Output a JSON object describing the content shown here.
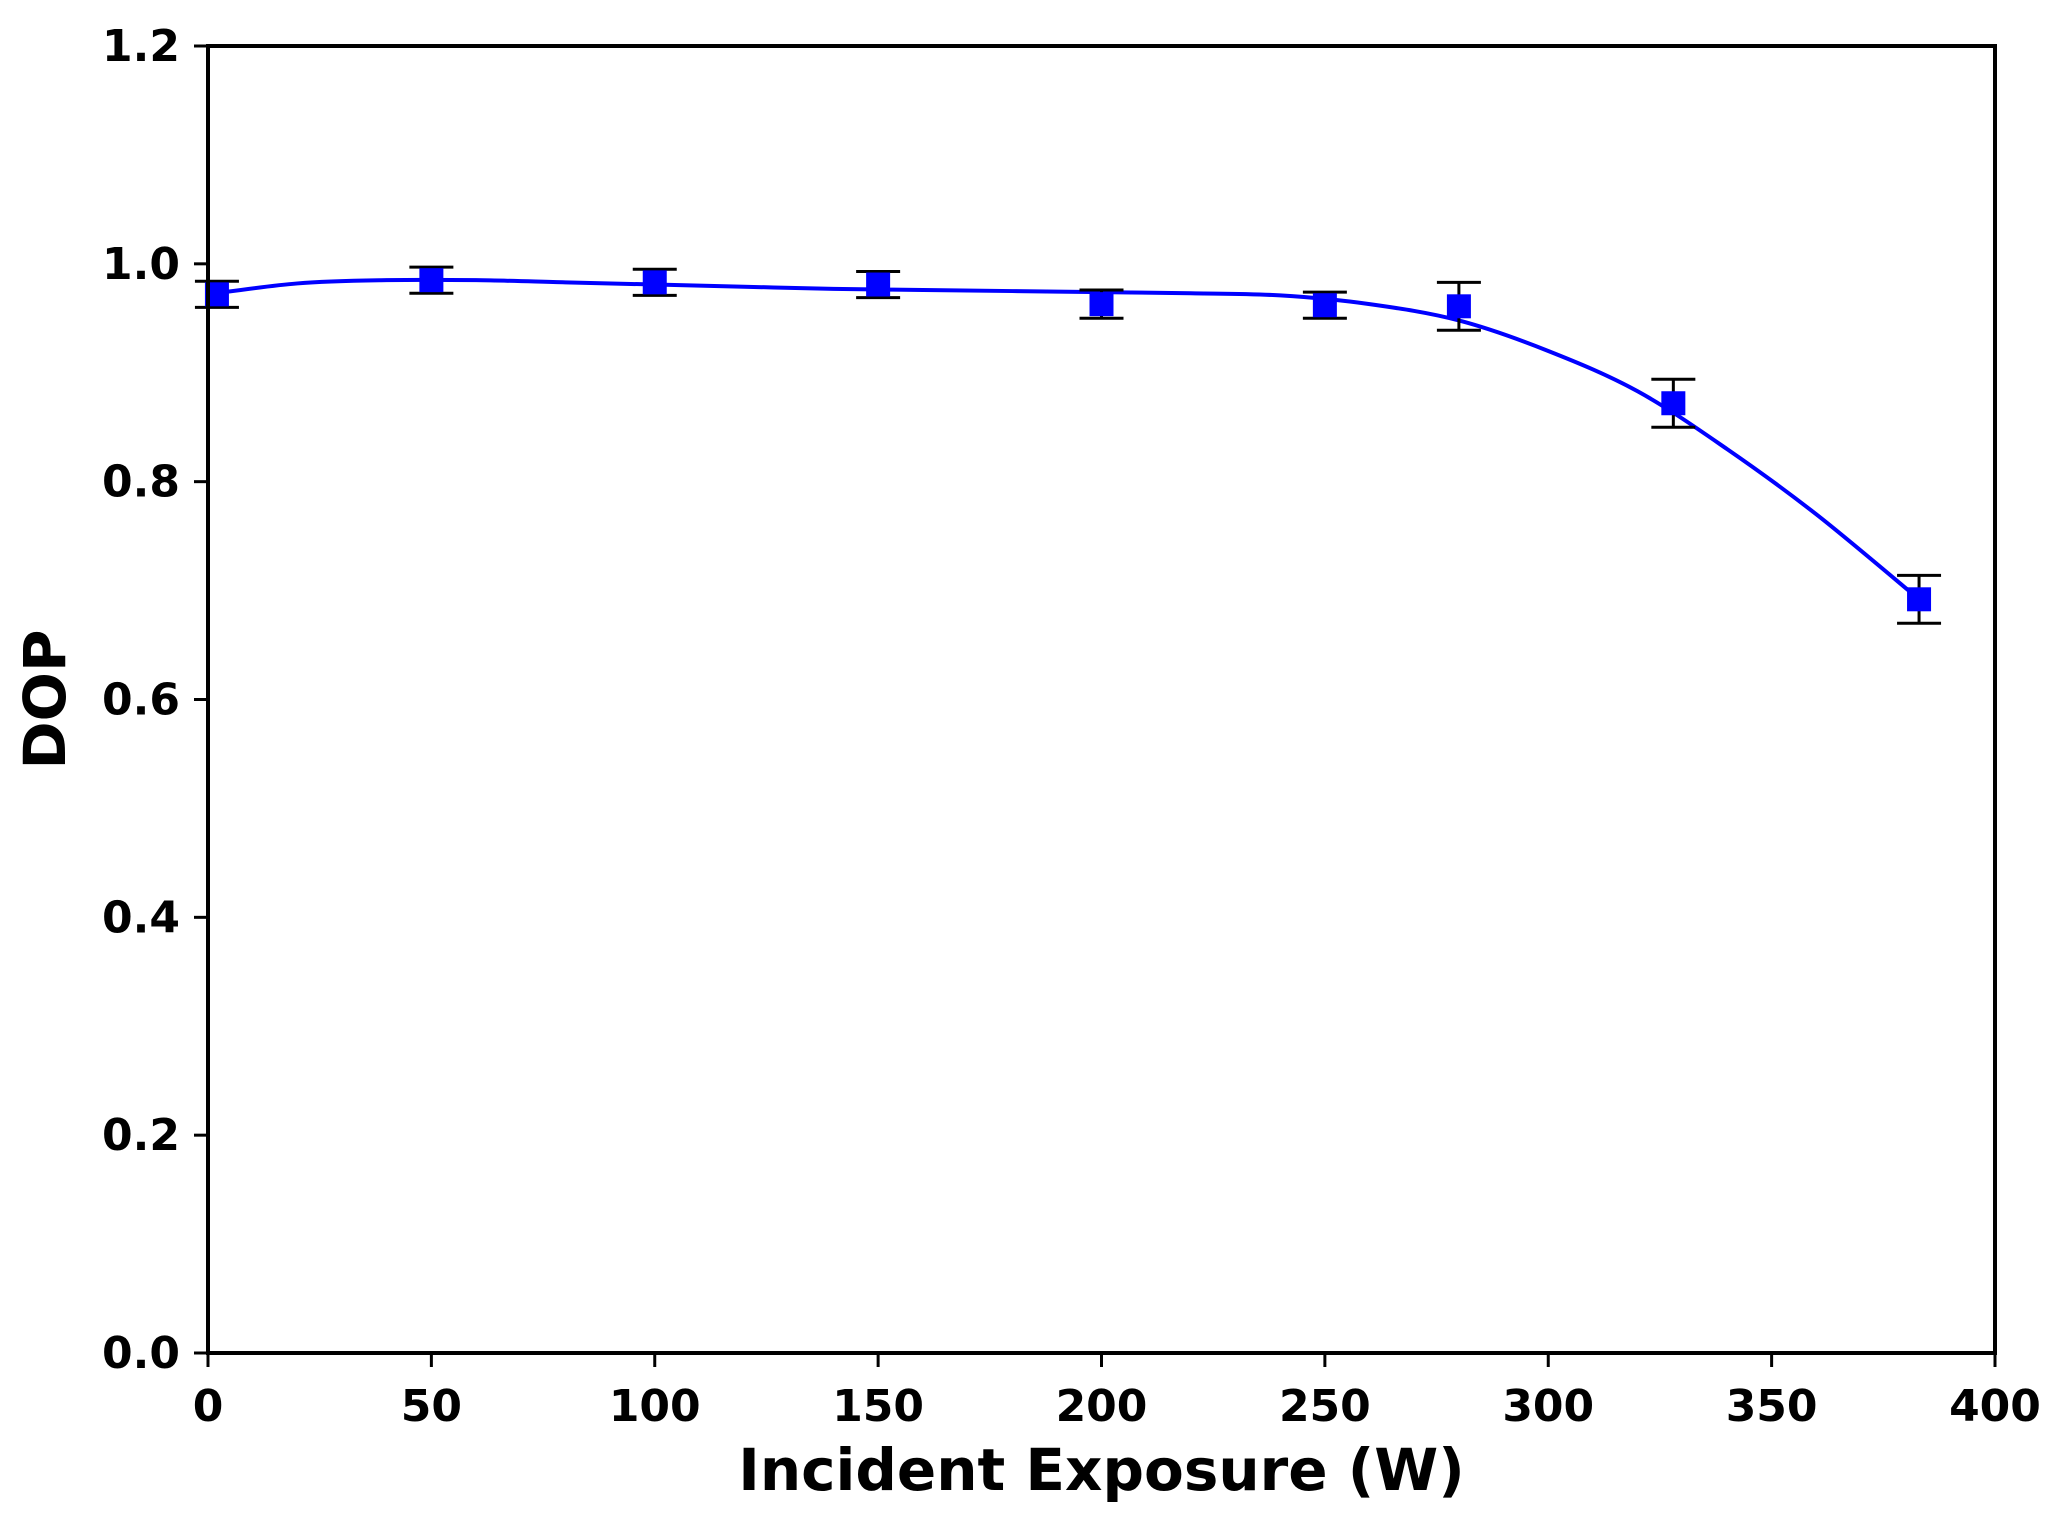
{
  "chart_data": {
    "type": "scatter",
    "title": "",
    "xlabel": "Incident Exposure (W)",
    "ylabel": "DOP",
    "xlim": [
      0,
      400
    ],
    "ylim": [
      0,
      1.2
    ],
    "xticks": [
      0,
      50,
      100,
      150,
      200,
      250,
      300,
      350,
      400
    ],
    "yticks": [
      0.0,
      0.2,
      0.4,
      0.6,
      0.8,
      1.0,
      1.2
    ],
    "xtick_labels": [
      "0",
      "50",
      "100",
      "150",
      "200",
      "250",
      "300",
      "350",
      "400"
    ],
    "ytick_labels": [
      "0.0",
      "0.2",
      "0.4",
      "0.6",
      "0.8",
      "1.0",
      "1.2"
    ],
    "grid": false,
    "legend": null,
    "series": [
      {
        "kind": "points_with_errorbars",
        "color": "#0000ff",
        "marker": "square",
        "x": [
          2,
          50,
          100,
          150,
          200,
          250,
          280,
          328,
          383
        ],
        "y": [
          0.972,
          0.985,
          0.983,
          0.981,
          0.963,
          0.962,
          0.961,
          0.872,
          0.692
        ],
        "yerr": [
          0.012,
          0.012,
          0.012,
          0.012,
          0.013,
          0.012,
          0.022,
          0.022,
          0.022
        ]
      },
      {
        "kind": "fit_curve",
        "color": "#0000ff",
        "x": [
          0,
          20,
          40,
          60,
          80,
          100,
          120,
          140,
          160,
          180,
          200,
          220,
          240,
          260,
          280,
          300,
          320,
          340,
          360,
          383
        ],
        "y": [
          0.972,
          0.982,
          0.985,
          0.985,
          0.983,
          0.981,
          0.979,
          0.977,
          0.976,
          0.975,
          0.974,
          0.973,
          0.971,
          0.963,
          0.948,
          0.92,
          0.883,
          0.83,
          0.77,
          0.692
        ]
      }
    ],
    "errorbar_color": "#000000"
  }
}
